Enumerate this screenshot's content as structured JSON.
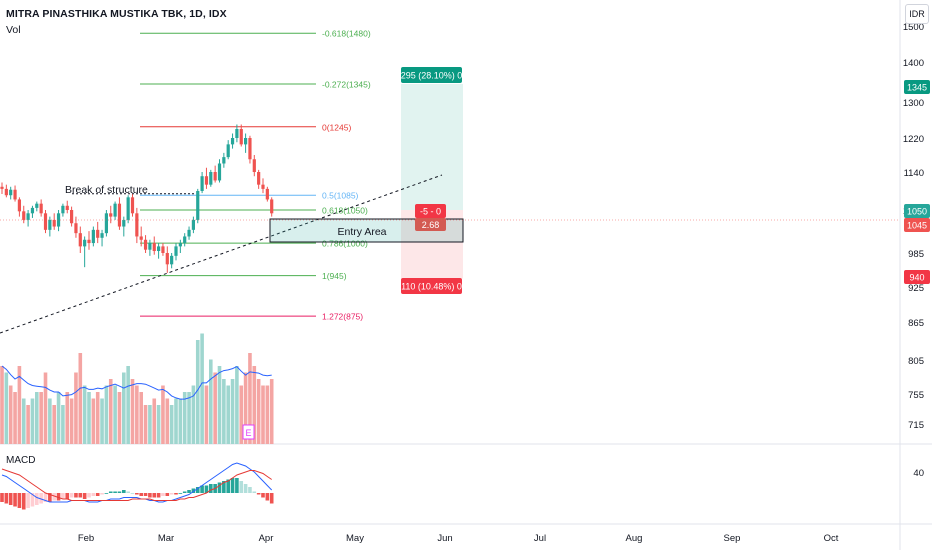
{
  "header": {
    "title": "MITRA PINASTHIKA MUSTIKA TBK, 1D, IDX",
    "vol_label": "Vol",
    "currency": "IDR"
  },
  "macd_label": "MACD",
  "colors": {
    "up": "#26a69a",
    "down": "#ef5350",
    "volUp": "#9fd6cf",
    "volDown": "#f4a5a3",
    "fibGreen": "#4caf50",
    "fibRed": "#e53935",
    "fibBlue": "#64b5f6",
    "fibPink": "#e91e63",
    "target": "#089981",
    "stop": "#f23645"
  },
  "chart_data": {
    "type": "candlestick",
    "price_axis": {
      "ticks": [
        1500,
        1400,
        1300,
        1220,
        1140,
        1050,
        985,
        925,
        865,
        805,
        755,
        715
      ]
    },
    "time_axis": {
      "labels": [
        "Feb",
        "Mar",
        "Apr",
        "May",
        "Jun",
        "Jul",
        "Aug",
        "Sep",
        "Oct"
      ]
    },
    "price_tags": [
      {
        "value": "1345",
        "kind": "target"
      },
      {
        "value": "1050",
        "kind": "entry"
      },
      {
        "value": "1045",
        "kind": "last"
      },
      {
        "value": "940",
        "kind": "stop"
      }
    ],
    "fib_levels": [
      {
        "label": "-0.618(1480)",
        "price": 1480,
        "color": "fibGreen"
      },
      {
        "label": "-0.272(1345)",
        "price": 1345,
        "color": "fibGreen"
      },
      {
        "label": "0(1245)",
        "price": 1245,
        "color": "fibRed"
      },
      {
        "label": "0.5(1085)",
        "price": 1085,
        "color": "fibBlue"
      },
      {
        "label": "0.618(1050)",
        "price": 1050,
        "color": "fibGreen"
      },
      {
        "label": "0.786(1000)",
        "price": 1000,
        "color": "fibGreen"
      },
      {
        "label": "1(945)",
        "price": 945,
        "color": "fibGreen"
      },
      {
        "label": "1.272(875)",
        "price": 875,
        "color": "fibPink"
      }
    ],
    "position": {
      "target_label": "295 (28.10%) 0",
      "stop_label": "110 (10.48%) 0",
      "center_label": "-5 - 0",
      "ratio_label": "2.68",
      "entry": 1050,
      "target": 1345,
      "stop": 940
    },
    "annotations": {
      "break_of_structure": "Break of structure",
      "entry_area": "Entry Area"
    },
    "volume_marker": "E",
    "candles": [
      [
        1105,
        1115,
        1088,
        1100
      ],
      [
        1100,
        1110,
        1080,
        1085
      ],
      [
        1085,
        1105,
        1075,
        1098
      ],
      [
        1098,
        1108,
        1070,
        1075
      ],
      [
        1075,
        1080,
        1040,
        1048
      ],
      [
        1048,
        1060,
        1030,
        1035
      ],
      [
        1035,
        1050,
        1025,
        1045
      ],
      [
        1045,
        1060,
        1038,
        1055
      ],
      [
        1055,
        1070,
        1048,
        1065
      ],
      [
        1065,
        1075,
        1040,
        1045
      ],
      [
        1045,
        1050,
        1015,
        1020
      ],
      [
        1020,
        1040,
        1010,
        1035
      ],
      [
        1035,
        1045,
        1020,
        1025
      ],
      [
        1025,
        1050,
        1018,
        1045
      ],
      [
        1045,
        1065,
        1040,
        1060
      ],
      [
        1060,
        1072,
        1045,
        1050
      ],
      [
        1050,
        1058,
        1025,
        1030
      ],
      [
        1030,
        1040,
        1008,
        1015
      ],
      [
        1015,
        1025,
        985,
        995
      ],
      [
        995,
        1010,
        960,
        1005
      ],
      [
        1005,
        1018,
        990,
        1000
      ],
      [
        1000,
        1025,
        995,
        1020
      ],
      [
        1020,
        1032,
        1000,
        1008
      ],
      [
        1008,
        1020,
        995,
        1015
      ],
      [
        1015,
        1050,
        1010,
        1045
      ],
      [
        1045,
        1060,
        1030,
        1040
      ],
      [
        1040,
        1070,
        1035,
        1065
      ],
      [
        1065,
        1080,
        1020,
        1025
      ],
      [
        1025,
        1040,
        1010,
        1035
      ],
      [
        1035,
        1085,
        1030,
        1080
      ],
      [
        1080,
        1088,
        1040,
        1045
      ],
      [
        1045,
        1055,
        1000,
        1010
      ],
      [
        1010,
        1025,
        995,
        1005
      ],
      [
        1005,
        1012,
        985,
        990
      ],
      [
        990,
        1005,
        980,
        1000
      ],
      [
        1000,
        1010,
        982,
        988
      ],
      [
        988,
        1000,
        975,
        995
      ],
      [
        995,
        1000,
        980,
        985
      ],
      [
        985,
        995,
        950,
        965
      ],
      [
        965,
        985,
        958,
        980
      ],
      [
        980,
        1000,
        972,
        995
      ],
      [
        995,
        1005,
        985,
        1000
      ],
      [
        1000,
        1015,
        995,
        1010
      ],
      [
        1010,
        1025,
        1005,
        1020
      ],
      [
        1020,
        1040,
        1015,
        1035
      ],
      [
        1035,
        1100,
        1030,
        1095
      ],
      [
        1095,
        1140,
        1090,
        1130
      ],
      [
        1130,
        1150,
        1100,
        1110
      ],
      [
        1110,
        1145,
        1105,
        1140
      ],
      [
        1140,
        1155,
        1115,
        1120
      ],
      [
        1120,
        1170,
        1115,
        1160
      ],
      [
        1160,
        1185,
        1150,
        1175
      ],
      [
        1175,
        1215,
        1170,
        1205
      ],
      [
        1205,
        1230,
        1195,
        1220
      ],
      [
        1220,
        1250,
        1210,
        1240
      ],
      [
        1240,
        1250,
        1200,
        1205
      ],
      [
        1205,
        1230,
        1185,
        1220
      ],
      [
        1220,
        1225,
        1160,
        1170
      ],
      [
        1170,
        1180,
        1130,
        1140
      ],
      [
        1140,
        1145,
        1100,
        1110
      ],
      [
        1110,
        1125,
        1090,
        1100
      ],
      [
        1100,
        1105,
        1070,
        1075
      ],
      [
        1075,
        1080,
        1040,
        1045
      ]
    ],
    "volume": [
      [
        60,
        0
      ],
      [
        55,
        1
      ],
      [
        45,
        0
      ],
      [
        40,
        0
      ],
      [
        60,
        0
      ],
      [
        35,
        1
      ],
      [
        30,
        0
      ],
      [
        35,
        1
      ],
      [
        40,
        1
      ],
      [
        40,
        0
      ],
      [
        55,
        0
      ],
      [
        35,
        1
      ],
      [
        30,
        0
      ],
      [
        40,
        1
      ],
      [
        30,
        1
      ],
      [
        40,
        0
      ],
      [
        35,
        0
      ],
      [
        55,
        0
      ],
      [
        70,
        0
      ],
      [
        45,
        1
      ],
      [
        40,
        1
      ],
      [
        35,
        0
      ],
      [
        40,
        0
      ],
      [
        35,
        1
      ],
      [
        45,
        1
      ],
      [
        50,
        0
      ],
      [
        45,
        1
      ],
      [
        40,
        0
      ],
      [
        55,
        1
      ],
      [
        60,
        1
      ],
      [
        50,
        0
      ],
      [
        45,
        0
      ],
      [
        40,
        0
      ],
      [
        30,
        0
      ],
      [
        30,
        1
      ],
      [
        35,
        0
      ],
      [
        30,
        1
      ],
      [
        45,
        0
      ],
      [
        35,
        0
      ],
      [
        30,
        1
      ],
      [
        35,
        1
      ],
      [
        35,
        1
      ],
      [
        40,
        1
      ],
      [
        40,
        1
      ],
      [
        45,
        1
      ],
      [
        80,
        1
      ],
      [
        85,
        1
      ],
      [
        45,
        0
      ],
      [
        65,
        1
      ],
      [
        55,
        0
      ],
      [
        60,
        1
      ],
      [
        50,
        1
      ],
      [
        45,
        1
      ],
      [
        50,
        1
      ],
      [
        60,
        1
      ],
      [
        45,
        0
      ],
      [
        55,
        0
      ],
      [
        70,
        0
      ],
      [
        60,
        0
      ],
      [
        50,
        0
      ],
      [
        45,
        0
      ],
      [
        45,
        0
      ],
      [
        50,
        0
      ]
    ],
    "macd": {
      "hist": [
        -6,
        -7,
        -8,
        -9,
        -10,
        -11,
        -10,
        -9,
        -8,
        -7,
        -6,
        -6,
        -5,
        -5,
        -4,
        -4,
        -3,
        -3,
        -3,
        -4,
        -3,
        -2,
        -2,
        -1,
        0,
        1,
        1,
        1,
        2,
        1,
        0,
        -1,
        -2,
        -2,
        -3,
        -3,
        -3,
        -2,
        -2,
        -1,
        -1,
        0,
        1,
        2,
        3,
        4,
        5,
        5,
        6,
        6,
        7,
        8,
        9,
        10,
        10,
        8,
        6,
        4,
        1,
        -1,
        -3,
        -5,
        -7
      ],
      "macd": [
        12,
        11,
        9,
        7,
        5,
        3,
        1,
        -1,
        -3,
        -4,
        -5,
        -6,
        -6,
        -6,
        -6,
        -6,
        -5,
        -5,
        -5,
        -5,
        -6,
        -6,
        -6,
        -5,
        -5,
        -4,
        -4,
        -4,
        -3,
        -3,
        -3,
        -3,
        -4,
        -4,
        -5,
        -5,
        -6,
        -6,
        -5,
        -5,
        -4,
        -3,
        -2,
        -1,
        1,
        3,
        5,
        7,
        9,
        11,
        13,
        15,
        17,
        19,
        20,
        19,
        18,
        16,
        14,
        11,
        8,
        5,
        2
      ],
      "signal": [
        16,
        15,
        14,
        13,
        12,
        10,
        8,
        6,
        4,
        2,
        0,
        -1,
        -2,
        -3,
        -4,
        -4,
        -5,
        -5,
        -5,
        -5,
        -5,
        -5,
        -5,
        -5,
        -5,
        -5,
        -5,
        -5,
        -5,
        -5,
        -4,
        -4,
        -4,
        -4,
        -4,
        -5,
        -5,
        -5,
        -5,
        -5,
        -5,
        -4,
        -4,
        -3,
        -3,
        -2,
        -1,
        0,
        2,
        3,
        5,
        7,
        8,
        10,
        12,
        13,
        14,
        15,
        15,
        14,
        13,
        11,
        9
      ]
    }
  }
}
